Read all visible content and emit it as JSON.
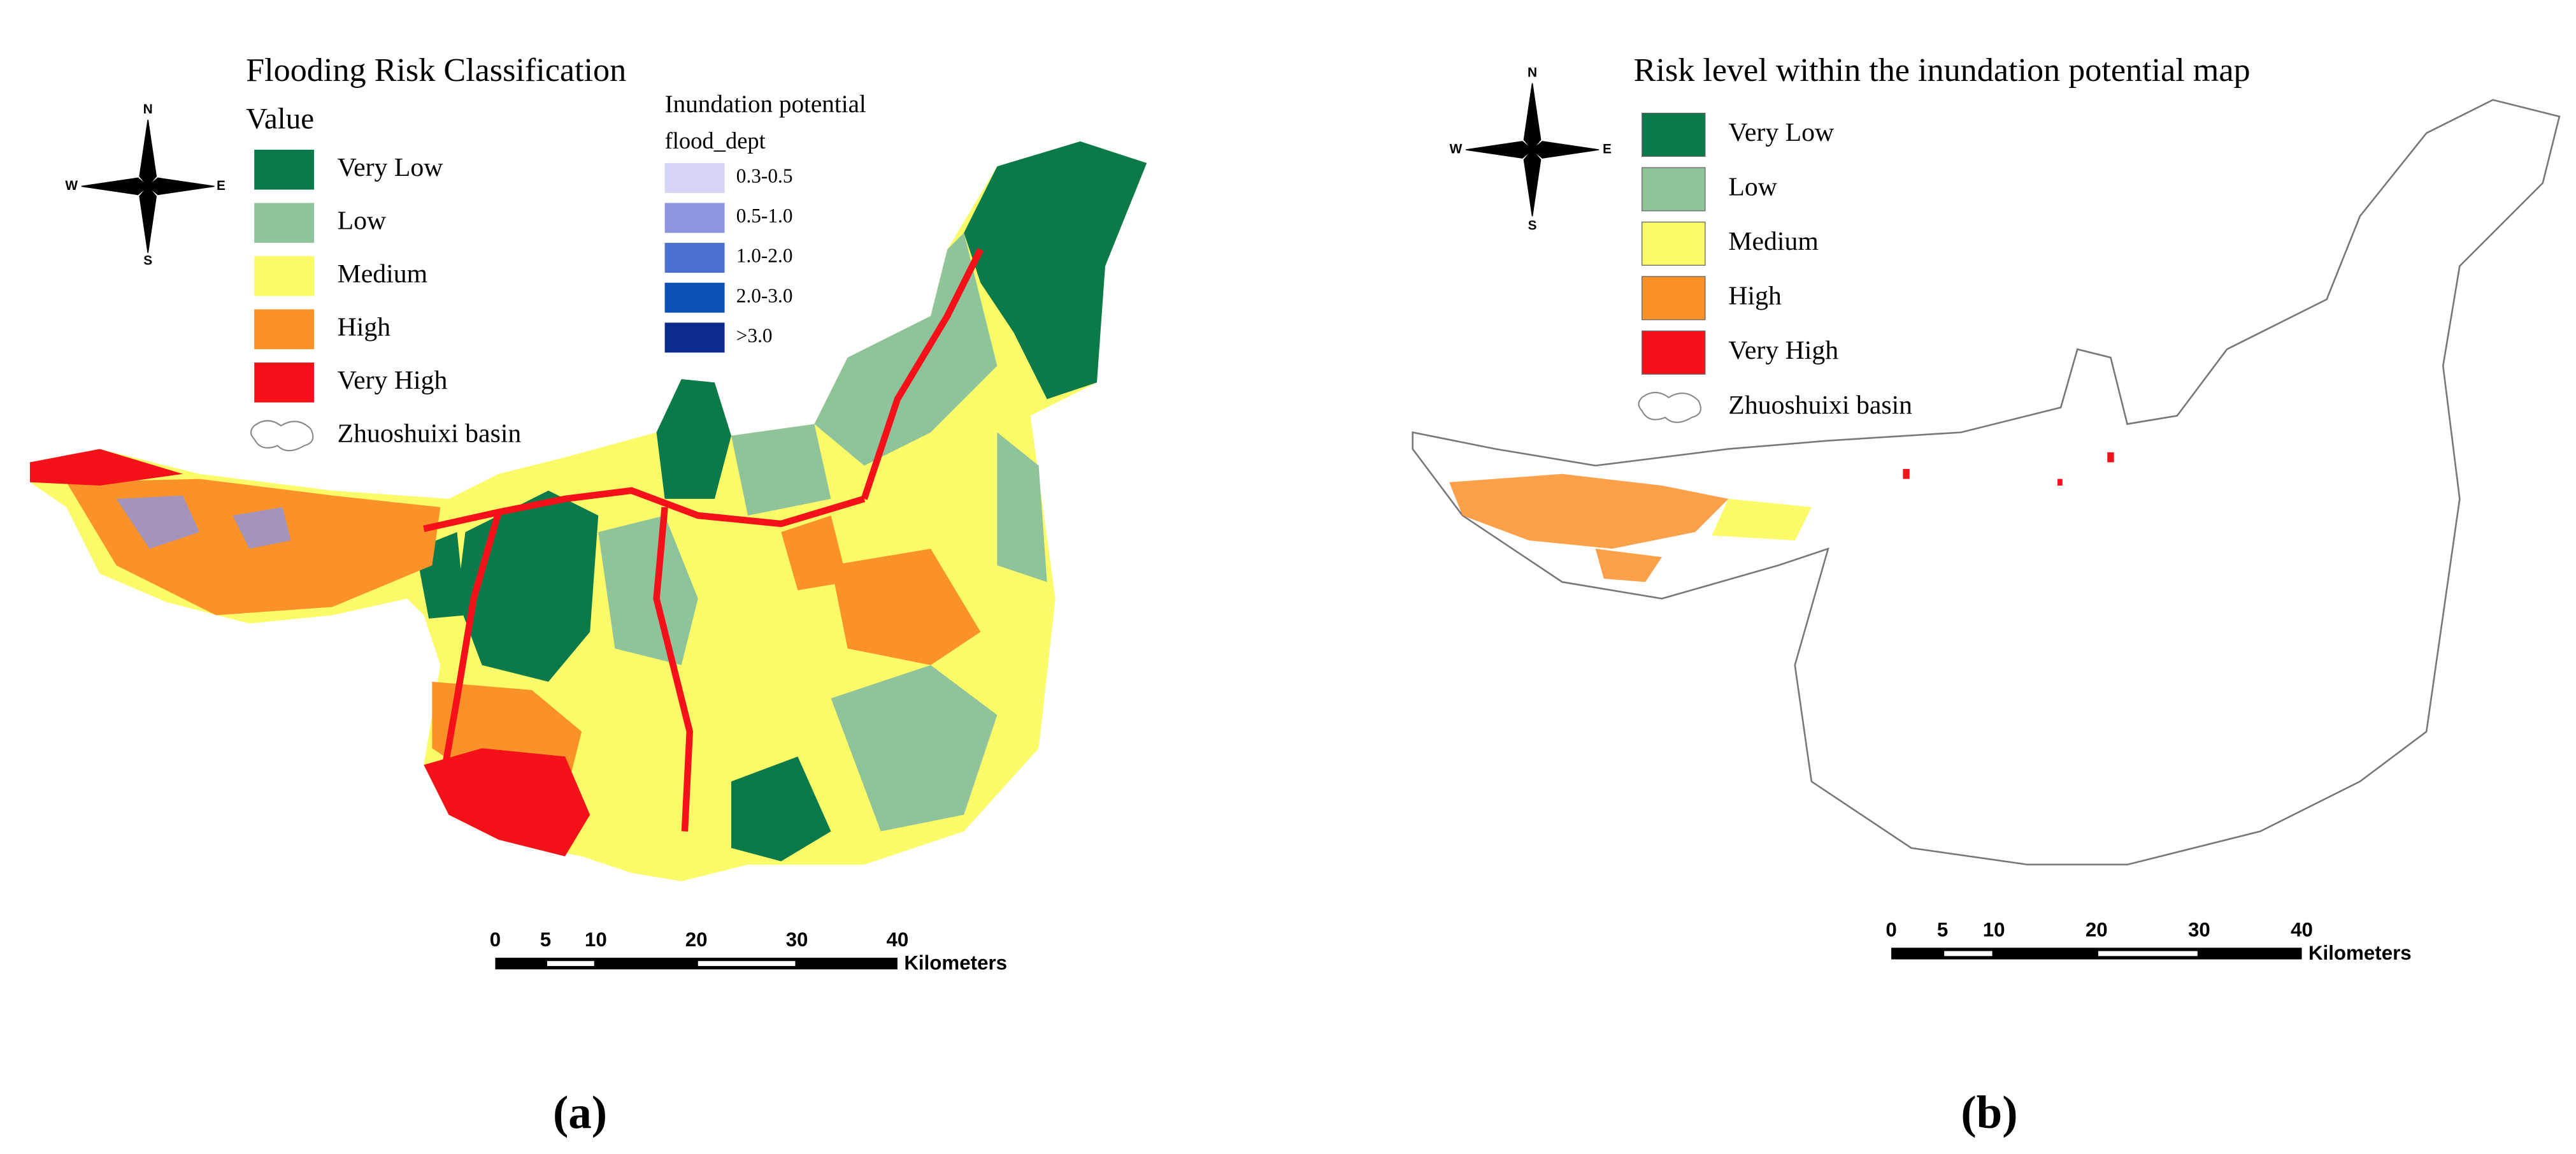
{
  "panels": [
    {
      "label": "(a)",
      "title": "Flooding Risk Classification",
      "legend_heading": "Value",
      "legend": [
        {
          "label": "Very Low",
          "color": "#0b7a4b"
        },
        {
          "label": "Low",
          "color": "#8fc49b"
        },
        {
          "label": "Medium",
          "color": "#fbfb6a"
        },
        {
          "label": "High",
          "color": "#fb9129"
        },
        {
          "label": "Very High",
          "color": "#f41119"
        }
      ],
      "basin_label": "Zhuoshuixi basin",
      "inundation": {
        "title": "Inundation potential",
        "field": "flood_dept",
        "classes": [
          {
            "label": "0.3-0.5",
            "color": "#d5d5f5"
          },
          {
            "label": "0.5-1.0",
            "color": "#8f94e0"
          },
          {
            "label": "1.0-2.0",
            "color": "#4d6fcf"
          },
          {
            "label": "2.0-3.0",
            "color": "#0b50b5"
          },
          {
            "label": ">3.0",
            "color": "#0a2b8c"
          }
        ]
      }
    },
    {
      "label": "(b)",
      "title": "Risk level within the inundation potential map",
      "legend": [
        {
          "label": "Very Low",
          "color": "#0b7a4b"
        },
        {
          "label": "Low",
          "color": "#8fc49b"
        },
        {
          "label": "Medium",
          "color": "#fbfb6a"
        },
        {
          "label": "High",
          "color": "#fb9129"
        },
        {
          "label": "Very High",
          "color": "#f41119"
        }
      ],
      "basin_label": "Zhuoshuixi basin"
    }
  ],
  "north_arrow": {
    "n": "N",
    "s": "S",
    "w": "W",
    "e": "E"
  },
  "scale_bar": {
    "ticks": [
      0,
      5,
      10,
      20,
      30,
      40
    ],
    "unit": "Kilometers"
  }
}
